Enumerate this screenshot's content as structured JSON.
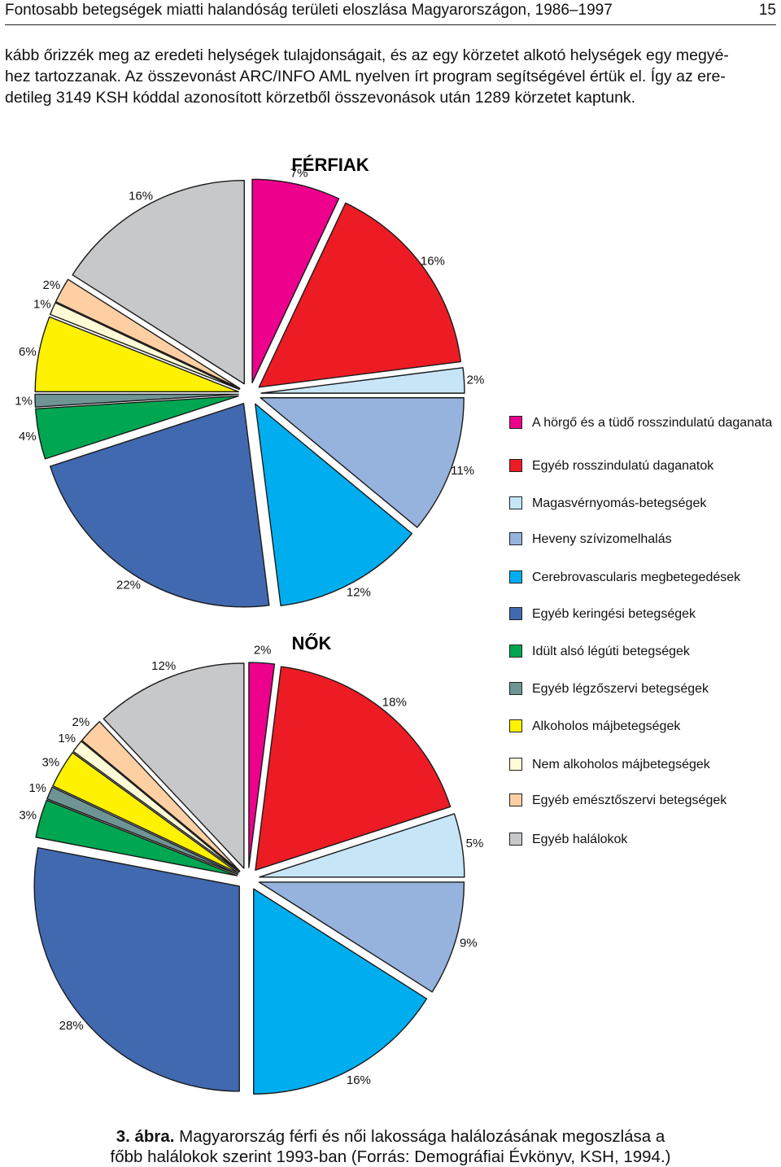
{
  "header": {
    "title": "Fontosabb betegségek miatti halandóság területi eloszlása Magyarországon, 1986–1997",
    "page_number": "15"
  },
  "body_text": [
    "kább őrizzék meg az eredeti helységek tulajdonságait, és az egy körzetet alkotó helységek egy megyé-",
    "hez tartozzanak. Az összevonást ARC/INFO AML nyelven írt program segítségével értük el. Így az ere-",
    "detileg 3149 KSH kóddal azonosított körzetből összevonások után 1289 körzetet kaptunk."
  ],
  "caption": {
    "label": "3. ábra.",
    "line1": " Magyarország férfi és női lakossága halálozásának megoszlása a",
    "line2": "főbb halálokok szerint 1993-ban (Forrás: Demográfiai Évkönyv, KSH, 1994.)"
  },
  "colors": [
    "#ec008c",
    "#ed1c24",
    "#c6e6f8",
    "#95b3dd",
    "#00aeef",
    "#4169b0",
    "#00a651",
    "#6f9494",
    "#fff200",
    "#fffbd6",
    "#fdcfa3",
    "#c7c8ca"
  ],
  "chart_data": {
    "type": "pie",
    "categories": [
      "A hörgő és a tüdő rosszindulatú daganata",
      "Egyéb rosszindulatú daganatok",
      "Magasvérnyomás-betegségek",
      "Heveny szívizomelhalás",
      "Cerebrovascularis megbetegedések",
      "Egyéb keringési betegségek",
      "Idült alsó légúti betegségek",
      "Egyéb légzőszervi betegségek",
      "Alkoholos májbetegségek",
      "Nem alkoholos májbetegségek",
      "Egyéb emésztőszervi betegségek",
      "Egyéb halálokok"
    ],
    "legend_position": "right",
    "unit": "%",
    "series": [
      {
        "name": "FÉRFIAK",
        "values": [
          7,
          16,
          2,
          11,
          12,
          22,
          4,
          1,
          6,
          1,
          2,
          16
        ],
        "labels": [
          "7%",
          "16%",
          "2%",
          "11%",
          "12%",
          "22%",
          "4%",
          "1%",
          "6%",
          "1%",
          "2%",
          "16%"
        ]
      },
      {
        "name": "NŐK",
        "values": [
          2,
          18,
          5,
          9,
          16,
          28,
          3,
          1,
          3,
          1,
          2,
          12
        ],
        "labels": [
          "2%",
          "18%",
          "5%",
          "9%",
          "16%",
          "28%",
          "3%",
          "1%",
          "3%",
          "1%",
          "2%",
          "12%"
        ]
      }
    ]
  }
}
